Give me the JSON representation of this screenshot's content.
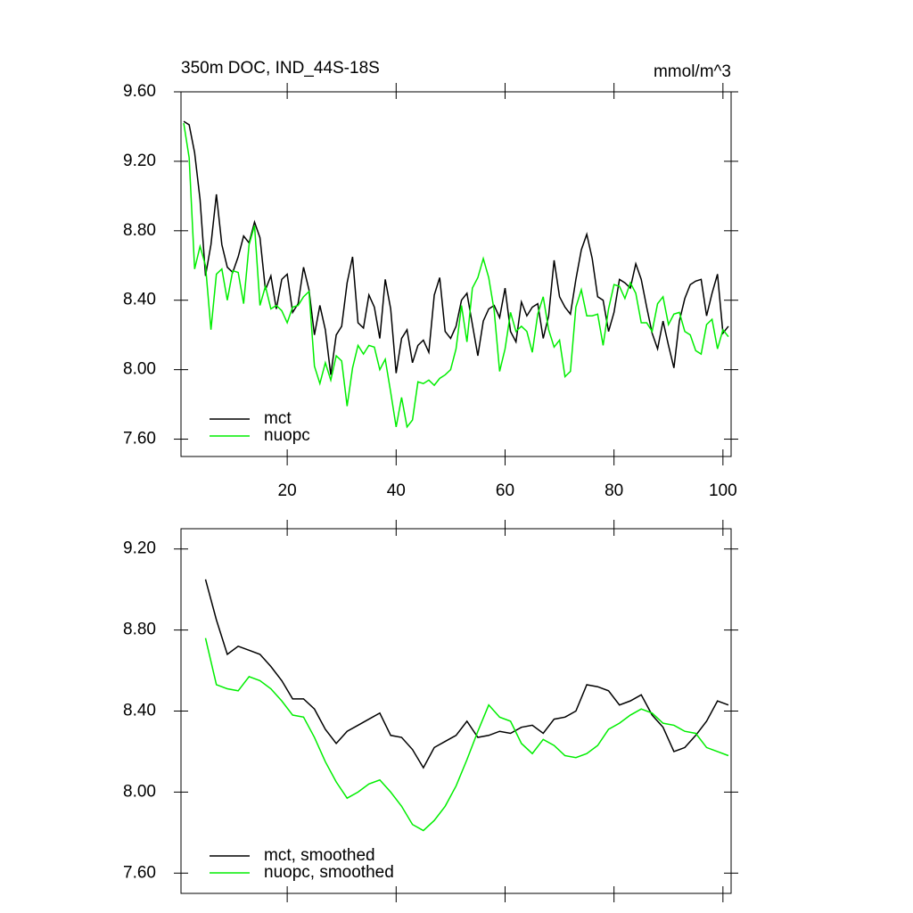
{
  "chart_data": [
    {
      "type": "line",
      "title": "350m DOC, IND_44S-18S",
      "units": "mmol/m^3",
      "x": [
        1,
        2,
        3,
        4,
        5,
        6,
        7,
        8,
        9,
        10,
        11,
        12,
        13,
        14,
        15,
        16,
        17,
        18,
        19,
        20,
        21,
        22,
        23,
        24,
        25,
        26,
        27,
        28,
        29,
        30,
        31,
        32,
        33,
        34,
        35,
        36,
        37,
        38,
        39,
        40,
        41,
        42,
        43,
        44,
        45,
        46,
        47,
        48,
        49,
        50,
        51,
        52,
        53,
        54,
        55,
        56,
        57,
        58,
        59,
        60,
        61,
        62,
        63,
        64,
        65,
        66,
        67,
        68,
        69,
        70,
        71,
        72,
        73,
        74,
        75,
        76,
        77,
        78,
        79,
        80,
        81,
        82,
        83,
        84,
        85,
        86,
        87,
        88,
        89,
        90,
        91,
        92,
        93,
        94,
        95,
        96,
        97,
        98,
        99,
        100,
        101
      ],
      "series": [
        {
          "name": "mct",
          "color": "#000000",
          "values": [
            9.43,
            9.41,
            9.25,
            8.98,
            8.54,
            8.72,
            9.01,
            8.72,
            8.59,
            8.56,
            8.65,
            8.77,
            8.73,
            8.85,
            8.76,
            8.46,
            8.54,
            8.35,
            8.52,
            8.55,
            8.33,
            8.38,
            8.59,
            8.46,
            8.2,
            8.37,
            8.23,
            7.97,
            8.2,
            8.25,
            8.5,
            8.65,
            8.27,
            8.24,
            8.43,
            8.36,
            8.18,
            8.52,
            8.35,
            7.98,
            8.18,
            8.23,
            8.04,
            8.14,
            8.17,
            8.1,
            8.43,
            8.53,
            8.22,
            8.18,
            8.25,
            8.4,
            8.44,
            8.26,
            8.08,
            8.28,
            8.35,
            8.37,
            8.3,
            8.47,
            8.22,
            8.16,
            8.39,
            8.31,
            8.36,
            8.38,
            8.18,
            8.31,
            8.63,
            8.42,
            8.36,
            8.32,
            8.52,
            8.69,
            8.78,
            8.64,
            8.42,
            8.4,
            8.22,
            8.33,
            8.52,
            8.5,
            8.47,
            8.61,
            8.52,
            8.36,
            8.21,
            8.12,
            8.28,
            8.14,
            8.01,
            8.28,
            8.41,
            8.49,
            8.51,
            8.52,
            8.31,
            8.44,
            8.55,
            8.21,
            8.25
          ]
        },
        {
          "name": "nuopc",
          "color": "#00ee00",
          "values": [
            9.42,
            9.22,
            8.58,
            8.71,
            8.6,
            8.23,
            8.55,
            8.58,
            8.4,
            8.57,
            8.56,
            8.38,
            8.72,
            8.83,
            8.37,
            8.48,
            8.35,
            8.37,
            8.34,
            8.27,
            8.36,
            8.37,
            8.42,
            8.45,
            8.02,
            7.92,
            8.04,
            7.94,
            8.08,
            8.05,
            7.79,
            8.01,
            8.14,
            8.09,
            8.14,
            8.13,
            8.0,
            8.06,
            7.87,
            7.67,
            7.84,
            7.67,
            7.71,
            7.93,
            7.92,
            7.94,
            7.91,
            7.95,
            7.97,
            8.0,
            8.12,
            8.37,
            8.16,
            8.47,
            8.53,
            8.64,
            8.53,
            8.34,
            7.99,
            8.12,
            8.33,
            8.22,
            8.25,
            8.22,
            8.1,
            8.32,
            8.42,
            8.23,
            8.13,
            8.17,
            7.96,
            7.99,
            8.36,
            8.46,
            8.31,
            8.31,
            8.32,
            8.14,
            8.35,
            8.49,
            8.48,
            8.41,
            8.5,
            8.44,
            8.27,
            8.27,
            8.22,
            8.38,
            8.42,
            8.26,
            8.32,
            8.33,
            8.22,
            8.2,
            8.11,
            8.09,
            8.26,
            8.29,
            8.12,
            8.23,
            8.19
          ]
        }
      ],
      "xlim": [
        0.5,
        101.5
      ],
      "ylim": [
        7.5,
        9.6
      ],
      "xticks": [
        20,
        40,
        60,
        80,
        100
      ],
      "show_xtick_labels": true,
      "yticks": [
        {
          "value": 7.6,
          "label": "7.60"
        },
        {
          "value": 8.0,
          "label": "8.00"
        },
        {
          "value": 8.4,
          "label": "8.40"
        },
        {
          "value": 8.8,
          "label": "8.80"
        },
        {
          "value": 9.2,
          "label": "9.20"
        },
        {
          "value": 9.6,
          "label": "9.60"
        }
      ],
      "legend": "lower left"
    },
    {
      "type": "line",
      "x": [
        5,
        7,
        9,
        11,
        13,
        15,
        17,
        19,
        21,
        23,
        25,
        27,
        29,
        31,
        33,
        35,
        37,
        39,
        41,
        43,
        45,
        47,
        49,
        51,
        53,
        55,
        57,
        59,
        61,
        63,
        65,
        67,
        69,
        71,
        73,
        75,
        77,
        79,
        81,
        83,
        85,
        87,
        89,
        91,
        93,
        95,
        97,
        99,
        101
      ],
      "series": [
        {
          "name": "mct, smoothed",
          "color": "#000000",
          "values": [
            9.05,
            8.85,
            8.68,
            8.72,
            8.7,
            8.68,
            8.62,
            8.55,
            8.46,
            8.46,
            8.41,
            8.31,
            8.24,
            8.3,
            8.33,
            8.36,
            8.39,
            8.28,
            8.27,
            8.21,
            8.12,
            8.22,
            8.25,
            8.28,
            8.35,
            8.27,
            8.28,
            8.3,
            8.29,
            8.32,
            8.33,
            8.29,
            8.36,
            8.37,
            8.4,
            8.53,
            8.52,
            8.5,
            8.43,
            8.45,
            8.48,
            8.38,
            8.32,
            8.2,
            8.22,
            8.28,
            8.35,
            8.45,
            8.43
          ]
        },
        {
          "name": "nuopc, smoothed",
          "color": "#00ee00",
          "values": [
            8.76,
            8.53,
            8.51,
            8.5,
            8.57,
            8.55,
            8.51,
            8.45,
            8.38,
            8.37,
            8.27,
            8.15,
            8.05,
            7.97,
            8.0,
            8.04,
            8.06,
            8.0,
            7.93,
            7.84,
            7.81,
            7.86,
            7.93,
            8.03,
            8.16,
            8.3,
            8.43,
            8.37,
            8.35,
            8.24,
            8.19,
            8.26,
            8.23,
            8.18,
            8.17,
            8.19,
            8.23,
            8.31,
            8.34,
            8.38,
            8.41,
            8.39,
            8.34,
            8.33,
            8.3,
            8.29,
            8.22,
            8.2,
            8.18
          ]
        }
      ],
      "xlim": [
        0.5,
        101.5
      ],
      "ylim": [
        7.5,
        9.3
      ],
      "xticks": [
        20,
        40,
        60,
        80,
        100
      ],
      "show_xtick_labels": false,
      "yticks": [
        {
          "value": 7.6,
          "label": "7.60"
        },
        {
          "value": 8.0,
          "label": "8.00"
        },
        {
          "value": 8.4,
          "label": "8.40"
        },
        {
          "value": 8.8,
          "label": "8.80"
        },
        {
          "value": 9.2,
          "label": "9.20"
        }
      ],
      "legend": "lower left"
    }
  ]
}
